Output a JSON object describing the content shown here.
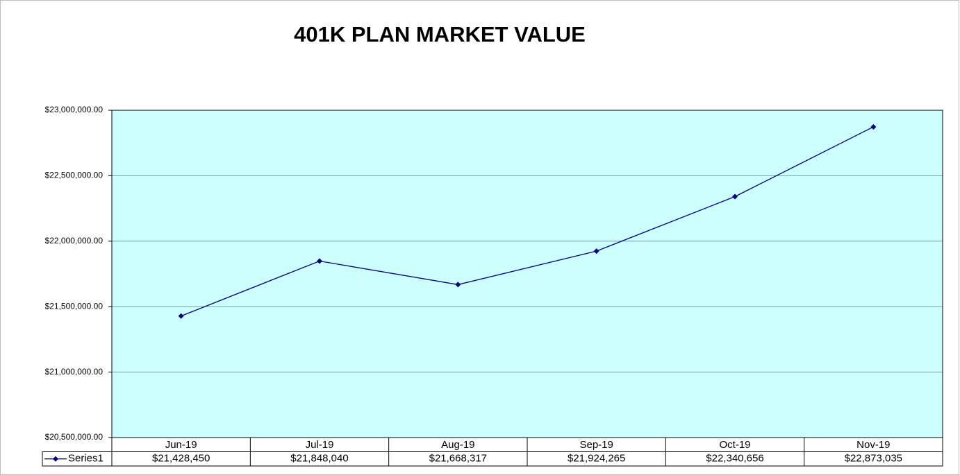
{
  "chart_data": {
    "type": "line",
    "title": "401K PLAN MARKET VALUE",
    "categories": [
      "Jun-19",
      "Jul-19",
      "Aug-19",
      "Sep-19",
      "Oct-19",
      "Nov-19"
    ],
    "series": [
      {
        "name": "Series1",
        "color": "#000080",
        "values": [
          21428450,
          21848040,
          21668317,
          21924265,
          22340656,
          22873035
        ],
        "value_labels": [
          "$21,428,450",
          "$21,848,040",
          "$21,668,317",
          "$21,924,265",
          "$22,340,656",
          "$22,873,035"
        ]
      }
    ],
    "ylim": [
      20500000,
      23000000
    ],
    "yticks": [
      {
        "value": 20500000,
        "label": "$20,500,000.00"
      },
      {
        "value": 21000000,
        "label": "$21,000,000.00"
      },
      {
        "value": 21500000,
        "label": "$21,500,000.00"
      },
      {
        "value": 22000000,
        "label": "$22,000,000.00"
      },
      {
        "value": 22500000,
        "label": "$22,500,000.00"
      },
      {
        "value": 23000000,
        "label": "$23,000,000.00"
      }
    ],
    "grid": true,
    "plot_background": "#ccffff"
  }
}
